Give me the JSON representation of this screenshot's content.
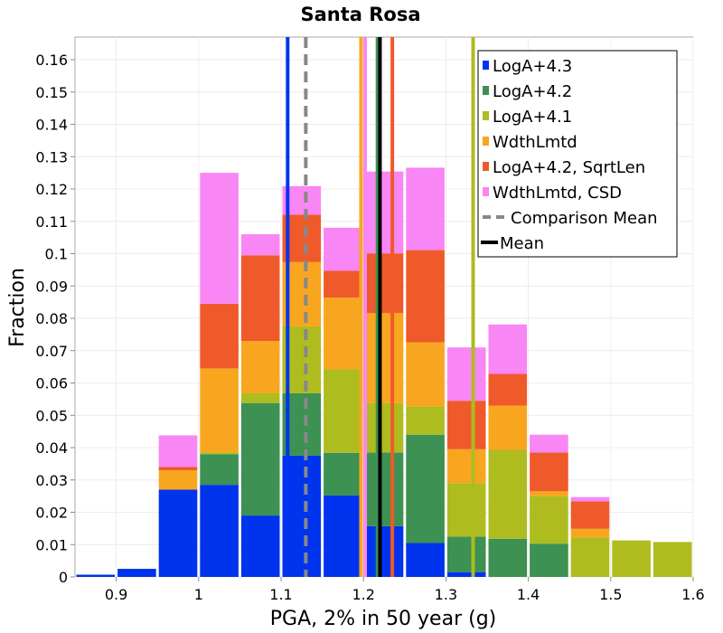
{
  "chart_data": {
    "type": "bar",
    "stacked": true,
    "title": "Santa Rosa",
    "xlabel": "PGA, 2% in 50 year (g)",
    "ylabel": "Fraction",
    "xlim": [
      0.85,
      1.6
    ],
    "ylim": [
      0,
      0.167
    ],
    "grid": true,
    "legend_position": "top-right",
    "bin_width": 0.05,
    "x_ticks": [
      "0.9",
      "1",
      "1.1",
      "1.2",
      "1.3",
      "1.4",
      "1.5",
      "1.6"
    ],
    "y_ticks": [
      "0",
      "0.01",
      "0.02",
      "0.03",
      "0.04",
      "0.05",
      "0.06",
      "0.07",
      "0.08",
      "0.09",
      "0.1",
      "0.11",
      "0.12",
      "0.13",
      "0.14",
      "0.15",
      "0.16"
    ],
    "bin_starts": [
      0.85,
      0.9,
      0.95,
      1.0,
      1.05,
      1.1,
      1.15,
      1.2,
      1.25,
      1.3,
      1.35,
      1.4,
      1.45,
      1.5,
      1.55
    ],
    "series": [
      {
        "name": "LogA+4.3",
        "color": "#0033ee",
        "values": [
          0.0007,
          0.0025,
          0.027,
          0.0285,
          0.019,
          0.0375,
          0.0252,
          0.0157,
          0.0105,
          0.0015,
          0,
          0,
          0,
          0,
          0
        ]
      },
      {
        "name": "LogA+4.2",
        "color": "#3d9152",
        "values": [
          0,
          0,
          0,
          0.0095,
          0.0348,
          0.0193,
          0.0132,
          0.0228,
          0.0335,
          0.011,
          0.0118,
          0.0103,
          0,
          0,
          0
        ]
      },
      {
        "name": "LogA+4.1",
        "color": "#aebc1f",
        "values": [
          0,
          0,
          0,
          0.0005,
          0.003,
          0.0207,
          0.0258,
          0.0153,
          0.0087,
          0.0165,
          0.0275,
          0.0147,
          0.0122,
          0.0113,
          0.0108
        ]
      },
      {
        "name": "WdthLmtd",
        "color": "#f8a620",
        "values": [
          0,
          0,
          0.006,
          0.026,
          0.0162,
          0.0199,
          0.0222,
          0.0278,
          0.0199,
          0.0105,
          0.0137,
          0.0015,
          0.0027,
          0,
          0
        ]
      },
      {
        "name": "LogA+4.2, SqrtLen",
        "color": "#ef5a2a",
        "values": [
          0,
          0,
          0.001,
          0.02,
          0.0265,
          0.0147,
          0.0083,
          0.0185,
          0.0285,
          0.015,
          0.0098,
          0.012,
          0.0085,
          0,
          0
        ]
      },
      {
        "name": "WdthLmtd, CSD",
        "color": "#f986f5",
        "values": [
          0,
          0,
          0.0098,
          0.0405,
          0.0065,
          0.0088,
          0.0133,
          0.0253,
          0.0255,
          0.0165,
          0.0153,
          0.0055,
          0.0013,
          0,
          0
        ]
      }
    ],
    "vertical_lines": [
      {
        "name": "LogA+4.3",
        "x": 1.108,
        "color": "#0033ee",
        "dashed": false
      },
      {
        "name": "Comparison Mean",
        "x": 1.13,
        "color": "#888888",
        "dashed": true
      },
      {
        "name": "WdthLmtd",
        "x": 1.197,
        "color": "#f8a620",
        "dashed": false
      },
      {
        "name": "WdthLmtd, CSD",
        "x": 1.202,
        "color": "#f986f5",
        "dashed": false
      },
      {
        "name": "LogA+4.2",
        "x": 1.217,
        "color": "#3d9152",
        "dashed": false
      },
      {
        "name": "Mean",
        "x": 1.22,
        "color": "#000000",
        "dashed": false
      },
      {
        "name": "LogA+4.2, SqrtLen",
        "x": 1.235,
        "color": "#ef5a2a",
        "dashed": false
      },
      {
        "name": "LogA+4.1",
        "x": 1.333,
        "color": "#aebc1f",
        "dashed": false
      }
    ],
    "legend": [
      {
        "label": "LogA+4.3",
        "color": "#0033ee",
        "kind": "box"
      },
      {
        "label": "LogA+4.2",
        "color": "#3d9152",
        "kind": "box"
      },
      {
        "label": "LogA+4.1",
        "color": "#aebc1f",
        "kind": "box"
      },
      {
        "label": "WdthLmtd",
        "color": "#f8a620",
        "kind": "box"
      },
      {
        "label": "LogA+4.2, SqrtLen",
        "color": "#ef5a2a",
        "kind": "box"
      },
      {
        "label": "WdthLmtd, CSD",
        "color": "#f986f5",
        "kind": "box"
      },
      {
        "label": "Comparison Mean",
        "color": "#888888",
        "kind": "dash"
      },
      {
        "label": "Mean",
        "color": "#000000",
        "kind": "line"
      }
    ]
  }
}
